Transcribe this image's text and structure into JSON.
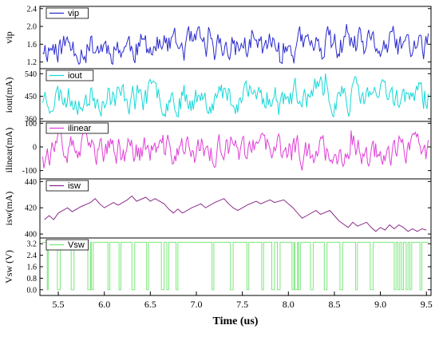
{
  "chart_data": {
    "type": "line",
    "shared_x": {
      "label": "Time (us)",
      "ticks": [
        "5.5",
        "6.0",
        "6.5",
        "7.0",
        "7.5",
        "8.0",
        "8.5",
        "9.0",
        "9.5"
      ],
      "tick_values": [
        5.5,
        6.0,
        6.5,
        7.0,
        7.5,
        8.0,
        8.5,
        9.0,
        9.5
      ],
      "xlim": [
        5.3,
        9.55
      ]
    },
    "panels": [
      {
        "name": "vip",
        "ylabel": "vip",
        "ylim": [
          1.05,
          2.45
        ],
        "yticks": [
          "1.2",
          "1.6",
          "2.0",
          "2.4"
        ],
        "ytick_values": [
          1.2,
          1.6,
          2.0,
          2.4
        ],
        "legend": "vip",
        "color": "#2b2bcf",
        "style": "noise",
        "center": 1.55,
        "amp": 0.22,
        "min": 1.15,
        "max": 2.42,
        "seed": 11,
        "npts": 330
      },
      {
        "name": "iout",
        "ylabel": "iout(mA)",
        "ylim": [
          350,
          560
        ],
        "yticks": [
          "360",
          "450",
          "540"
        ],
        "ytick_values": [
          360,
          450,
          540
        ],
        "legend": "iout",
        "color": "#19d8d8",
        "style": "noise",
        "center": 450,
        "amp": 38,
        "min": 368,
        "max": 555,
        "seed": 23,
        "npts": 330
      },
      {
        "name": "ilinear",
        "ylabel": "ilinear(mA)",
        "ylim": [
          -135,
          108
        ],
        "yticks": [
          "-100",
          "0",
          "100"
        ],
        "ytick_values": [
          -100,
          0,
          100
        ],
        "legend": "ilinear",
        "color": "#e040d8",
        "style": "noise",
        "center": -15,
        "amp": 40,
        "min": -125,
        "max": 75,
        "seed": 37,
        "npts": 330
      },
      {
        "name": "isw",
        "ylabel": "isw(mA)",
        "ylim": [
          397,
          442
        ],
        "yticks": [
          "400",
          "420",
          "440"
        ],
        "ytick_values": [
          400,
          420,
          440
        ],
        "legend": "isw",
        "color": "#8a2d8a",
        "style": "sawtooth",
        "points": [
          [
            5.35,
            411
          ],
          [
            5.4,
            414
          ],
          [
            5.45,
            411
          ],
          [
            5.5,
            416
          ],
          [
            5.6,
            420
          ],
          [
            5.65,
            417
          ],
          [
            5.75,
            421
          ],
          [
            5.85,
            424
          ],
          [
            5.9,
            427
          ],
          [
            5.95,
            423
          ],
          [
            6.0,
            420
          ],
          [
            6.1,
            424
          ],
          [
            6.15,
            422
          ],
          [
            6.25,
            426
          ],
          [
            6.3,
            429
          ],
          [
            6.35,
            425
          ],
          [
            6.45,
            428
          ],
          [
            6.5,
            425
          ],
          [
            6.55,
            427
          ],
          [
            6.65,
            423
          ],
          [
            6.7,
            419
          ],
          [
            6.75,
            416
          ],
          [
            6.8,
            419
          ],
          [
            6.85,
            416
          ],
          [
            6.95,
            420
          ],
          [
            7.05,
            423
          ],
          [
            7.1,
            420
          ],
          [
            7.2,
            424
          ],
          [
            7.3,
            427
          ],
          [
            7.35,
            423
          ],
          [
            7.4,
            420
          ],
          [
            7.45,
            418
          ],
          [
            7.55,
            422
          ],
          [
            7.65,
            425
          ],
          [
            7.7,
            423
          ],
          [
            7.8,
            426
          ],
          [
            7.85,
            424
          ],
          [
            7.95,
            426
          ],
          [
            8.0,
            423
          ],
          [
            8.05,
            420
          ],
          [
            8.1,
            416
          ],
          [
            8.15,
            412
          ],
          [
            8.2,
            414
          ],
          [
            8.3,
            418
          ],
          [
            8.35,
            415
          ],
          [
            8.45,
            418
          ],
          [
            8.5,
            414
          ],
          [
            8.55,
            410
          ],
          [
            8.65,
            405
          ],
          [
            8.7,
            409
          ],
          [
            8.75,
            406
          ],
          [
            8.85,
            409
          ],
          [
            8.9,
            405
          ],
          [
            8.95,
            402
          ],
          [
            9.0,
            405
          ],
          [
            9.05,
            403
          ],
          [
            9.1,
            407
          ],
          [
            9.15,
            404
          ],
          [
            9.2,
            407
          ],
          [
            9.25,
            405
          ],
          [
            9.3,
            402
          ],
          [
            9.35,
            404
          ],
          [
            9.4,
            402
          ],
          [
            9.45,
            404
          ],
          [
            9.5,
            403
          ]
        ]
      },
      {
        "name": "Vsw",
        "ylabel": "Vsw (V)",
        "ylim": [
          -0.4,
          3.6
        ],
        "yticks": [
          "0.0",
          "0.8",
          "1.6",
          "2.4",
          "3.2"
        ],
        "ytick_values": [
          0.0,
          0.8,
          1.6,
          2.4,
          3.2
        ],
        "legend": "Vsw",
        "color": "#7ae87a",
        "style": "pulse",
        "high": 3.3,
        "low": 0.0,
        "low_intervals": [
          [
            5.38,
            5.39
          ],
          [
            5.49,
            5.52
          ],
          [
            5.64,
            5.67
          ],
          [
            5.82,
            5.85
          ],
          [
            5.86,
            5.88
          ],
          [
            6.04,
            6.06
          ],
          [
            6.16,
            6.18
          ],
          [
            6.3,
            6.33
          ],
          [
            6.46,
            6.48
          ],
          [
            6.62,
            6.65
          ],
          [
            6.68,
            6.7
          ],
          [
            6.78,
            6.8
          ],
          [
            7.17,
            7.19
          ],
          [
            7.37,
            7.4
          ],
          [
            7.55,
            7.57
          ],
          [
            7.71,
            7.73
          ],
          [
            7.82,
            7.85
          ],
          [
            7.88,
            7.91
          ],
          [
            8.04,
            8.06
          ],
          [
            8.07,
            8.1
          ],
          [
            8.11,
            8.13
          ],
          [
            8.24,
            8.27
          ],
          [
            8.39,
            8.42
          ],
          [
            8.56,
            8.59
          ],
          [
            8.73,
            8.75
          ],
          [
            8.89,
            8.92
          ],
          [
            9.15,
            9.17
          ],
          [
            9.19,
            9.21
          ],
          [
            9.23,
            9.25
          ],
          [
            9.28,
            9.3
          ],
          [
            9.32,
            9.34
          ],
          [
            9.43,
            9.45
          ]
        ]
      }
    ]
  }
}
